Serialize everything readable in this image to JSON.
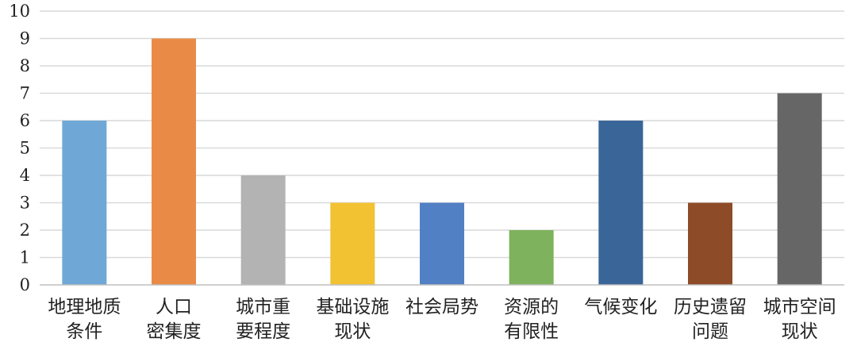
{
  "chart_data": {
    "type": "bar",
    "title": "",
    "xlabel": "",
    "ylabel": "",
    "ylim": [
      0,
      10
    ],
    "yticks": [
      0,
      1,
      2,
      3,
      4,
      5,
      6,
      7,
      8,
      9,
      10
    ],
    "grid": true,
    "legend": "none",
    "categories": [
      [
        "地理地质",
        "条件"
      ],
      [
        "人口",
        "密集度"
      ],
      [
        "城市重",
        "要程度"
      ],
      [
        "基础设施",
        "现状"
      ],
      [
        "社会局势"
      ],
      [
        "资源的",
        "有限性"
      ],
      [
        "气候变化"
      ],
      [
        "历史遗留",
        "问题"
      ],
      [
        "城市空间",
        "现状"
      ]
    ],
    "values": [
      6,
      9,
      4,
      3,
      3,
      2,
      6,
      3,
      7
    ],
    "colors": [
      "#6fa8d6",
      "#e98b47",
      "#b3b3b3",
      "#f2c232",
      "#5280c4",
      "#7eb25c",
      "#3a6599",
      "#8e4b27",
      "#666666"
    ]
  }
}
